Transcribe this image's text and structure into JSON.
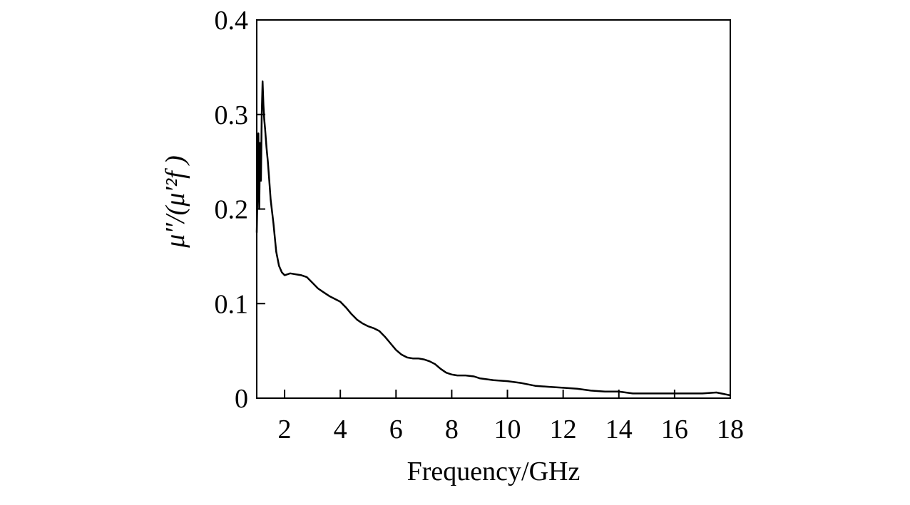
{
  "chart_data": {
    "type": "line",
    "title": "",
    "xlabel": "Frequency/GHz",
    "ylabel": "μ″/(μ′²f )",
    "xlim": [
      1,
      18
    ],
    "ylim": [
      0,
      0.4
    ],
    "xticks": [
      2,
      4,
      6,
      8,
      10,
      12,
      14,
      16,
      18
    ],
    "xtick_labels": [
      "2",
      "4",
      "6",
      "8",
      "10",
      "12",
      "14",
      "16",
      "18"
    ],
    "yticks": [
      0,
      0.1,
      0.2,
      0.3,
      0.4
    ],
    "ytick_labels": [
      "0",
      "0.1",
      "0.2",
      "0.3",
      "0.4"
    ],
    "grid": false,
    "legend": null,
    "line_color": "#000000",
    "series": [
      {
        "x": [
          1.0,
          1.03,
          1.06,
          1.09,
          1.12,
          1.15,
          1.18,
          1.21,
          1.24,
          1.27,
          1.3,
          1.35,
          1.4,
          1.45,
          1.5,
          1.6,
          1.7,
          1.8,
          1.9,
          2.0,
          2.2,
          2.4,
          2.6,
          2.8,
          3.0,
          3.2,
          3.4,
          3.6,
          3.8,
          4.0,
          4.2,
          4.4,
          4.6,
          4.8,
          5.0,
          5.2,
          5.4,
          5.6,
          5.8,
          6.0,
          6.2,
          6.4,
          6.6,
          6.8,
          7.0,
          7.2,
          7.4,
          7.6,
          7.8,
          8.0,
          8.2,
          8.5,
          8.8,
          9.0,
          9.5,
          10.0,
          10.5,
          11.0,
          11.5,
          12.0,
          12.5,
          13.0,
          13.5,
          14.0,
          14.5,
          15.0,
          15.5,
          16.0,
          16.5,
          17.0,
          17.5,
          18.0
        ],
        "values": [
          0.175,
          0.22,
          0.28,
          0.2,
          0.27,
          0.23,
          0.3,
          0.335,
          0.31,
          0.295,
          0.285,
          0.265,
          0.25,
          0.23,
          0.21,
          0.185,
          0.155,
          0.14,
          0.133,
          0.13,
          0.132,
          0.131,
          0.13,
          0.128,
          0.122,
          0.116,
          0.112,
          0.108,
          0.105,
          0.102,
          0.096,
          0.089,
          0.083,
          0.079,
          0.076,
          0.074,
          0.071,
          0.065,
          0.058,
          0.051,
          0.046,
          0.043,
          0.042,
          0.042,
          0.041,
          0.039,
          0.036,
          0.031,
          0.027,
          0.025,
          0.024,
          0.024,
          0.023,
          0.021,
          0.019,
          0.018,
          0.016,
          0.013,
          0.012,
          0.011,
          0.01,
          0.008,
          0.007,
          0.007,
          0.005,
          0.005,
          0.005,
          0.005,
          0.005,
          0.005,
          0.006,
          0.003
        ]
      }
    ]
  }
}
